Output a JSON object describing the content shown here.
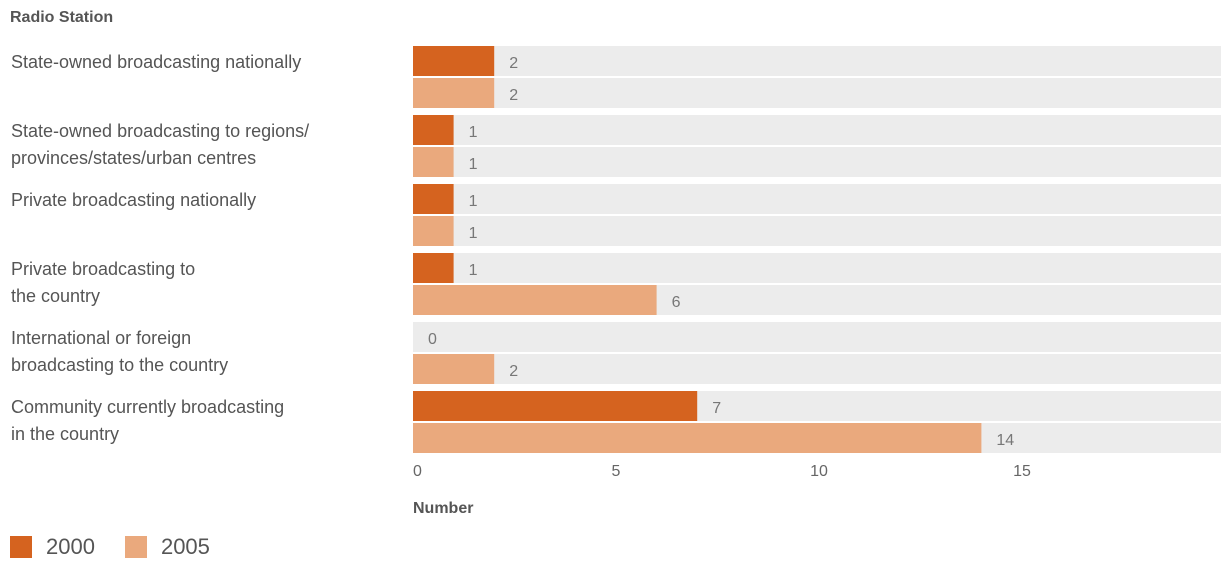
{
  "chart_data": {
    "type": "bar",
    "orientation": "horizontal",
    "title": "Radio Station",
    "xlabel": "Number",
    "ylabel": "",
    "xlim": [
      0,
      19
    ],
    "xticks": [
      0,
      5,
      10,
      15
    ],
    "grid": false,
    "legend_position": "bottom-left",
    "categories": [
      [
        "State-owned broadcasting nationally"
      ],
      [
        "State-owned broadcasting to regions/",
        "provinces/states/urban centres"
      ],
      [
        "Private broadcasting nationally"
      ],
      [
        "Private broadcasting to",
        "the country"
      ],
      [
        "International or foreign",
        "broadcasting to the country"
      ],
      [
        "Community currently broadcasting",
        "in the country"
      ]
    ],
    "series": [
      {
        "name": "2000",
        "color": "#d5631f",
        "values": [
          2,
          1,
          1,
          1,
          0,
          7
        ]
      },
      {
        "name": "2005",
        "color": "#eaa97d",
        "values": [
          2,
          1,
          1,
          6,
          2,
          14
        ]
      }
    ],
    "track_color": "#ececec"
  }
}
